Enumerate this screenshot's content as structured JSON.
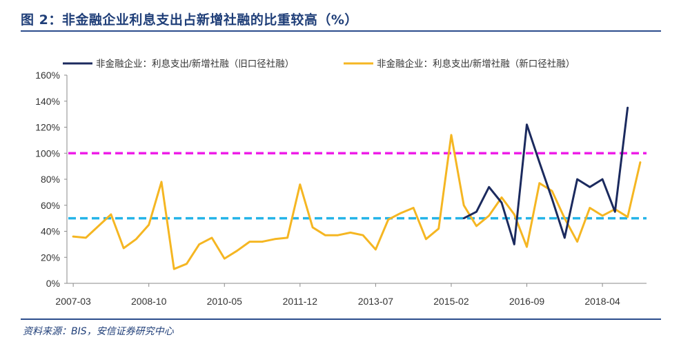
{
  "header": {
    "title": "图 2：非金融企业利息支出占新增社融的比重较高（%）"
  },
  "footer": {
    "source": "资料来源：BIS，安信证券研究中心"
  },
  "colors": {
    "series_old": "#1b2a5e",
    "series_new": "#f5b622",
    "ref_high": "#ee1ee8",
    "ref_low": "#25b4e8",
    "axis": "#8a8a8a",
    "rule": "#2b4c8c"
  },
  "chart_data": {
    "type": "line",
    "ylim": [
      0,
      160
    ],
    "yticks": [
      0,
      20,
      40,
      60,
      80,
      100,
      120,
      140,
      160
    ],
    "ytick_labels": [
      "0%",
      "20%",
      "40%",
      "60%",
      "80%",
      "100%",
      "120%",
      "140%",
      "160%"
    ],
    "x_tick_labels": [
      "2007-03",
      "2008-10",
      "2010-05",
      "2011-12",
      "2013-07",
      "2015-02",
      "2016-09",
      "2018-04"
    ],
    "x_tick_index": [
      0,
      6,
      12,
      18,
      24,
      30,
      36,
      42
    ],
    "grid": false,
    "legend_position": "top",
    "reference_lines": [
      {
        "value": 100,
        "color": "#ee1ee8",
        "style": "dashed"
      },
      {
        "value": 50,
        "color": "#25b4e8",
        "style": "dashed"
      }
    ],
    "series": [
      {
        "name": "非金融企业：利息支出/新增社融（旧口径社融）",
        "color": "#1b2a5e",
        "start_index": 31,
        "values": [
          50,
          55,
          74,
          62,
          30,
          122,
          93,
          65,
          35,
          80,
          74,
          80,
          55,
          135
        ]
      },
      {
        "name": "非金融企业：利息支出/新增社融（新口径社融）",
        "color": "#f5b622",
        "start_index": 0,
        "values": [
          36,
          35,
          44,
          53,
          27,
          34,
          45,
          78,
          11,
          15,
          30,
          35,
          19,
          25,
          32,
          32,
          34,
          35,
          76,
          43,
          37,
          37,
          39,
          37,
          26,
          49,
          54,
          58,
          34,
          42,
          114,
          60,
          44,
          52,
          66,
          53,
          28,
          77,
          71,
          50,
          32,
          58,
          52,
          57,
          51,
          93
        ]
      }
    ]
  }
}
